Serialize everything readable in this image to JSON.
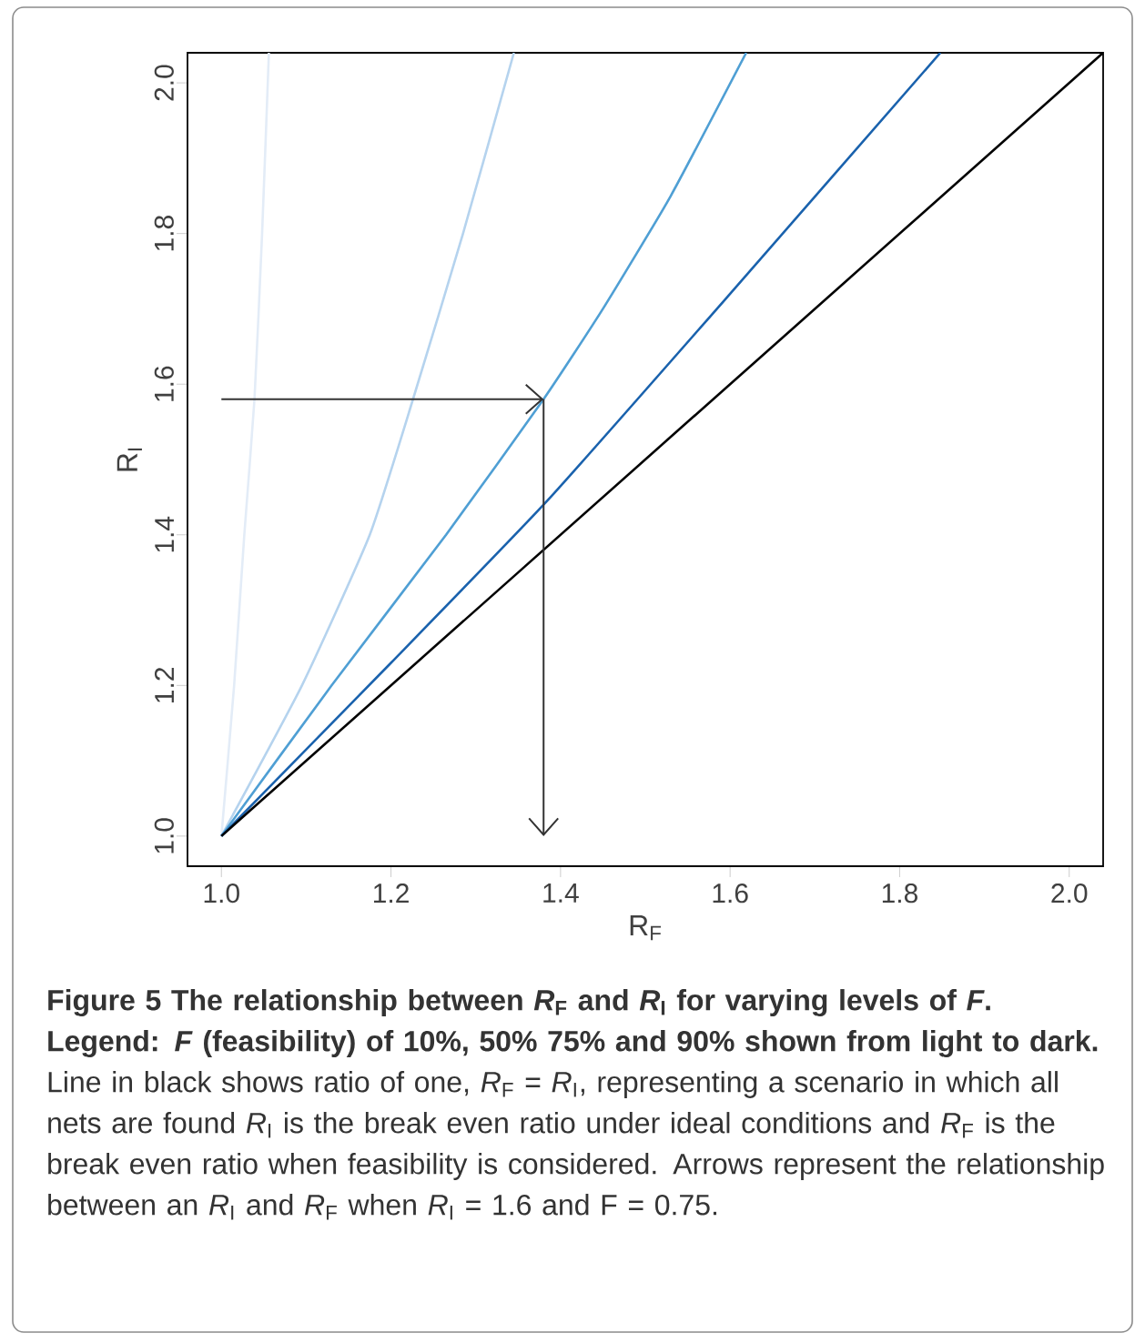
{
  "chart_data": {
    "type": "line",
    "xlabel": "R$_{F}$",
    "ylabel": "R$_{I}$",
    "xlim": [
      0.96,
      2.04
    ],
    "ylim": [
      0.96,
      2.04
    ],
    "xticks": [
      {
        "value": 1,
        "label": "1.0"
      },
      1.2,
      1.4,
      1.6,
      1.8,
      {
        "value": 2,
        "label": "2.0"
      }
    ],
    "yticks": [
      {
        "value": 1,
        "label": "1.0"
      },
      1.2,
      1.4,
      1.6,
      1.8,
      {
        "value": 2,
        "label": "2.0"
      }
    ],
    "grid": false,
    "legend": false,
    "marker": "none",
    "line_style": "solid",
    "series": [
      {
        "color": "#e3ecf7",
        "x": [
          1.0,
          1.015,
          1.027,
          1.039,
          1.048,
          1.056
        ],
        "values": [
          1.0,
          1.2,
          1.4,
          1.58,
          1.8,
          2.04
        ]
      },
      {
        "color": "#b5d3ee",
        "x": [
          1.0,
          1.095,
          1.175,
          1.226,
          1.285,
          1.345
        ],
        "values": [
          1.0,
          1.2,
          1.4,
          1.58,
          1.8,
          2.04
        ]
      },
      {
        "color": "#4f9fd4",
        "x": [
          1.0,
          1.13,
          1.265,
          1.38,
          1.45,
          1.53,
          1.619
        ],
        "values": [
          1.0,
          1.2,
          1.4,
          1.58,
          1.7,
          1.85,
          2.04
        ]
      },
      {
        "color": "#1a62ad",
        "x": [
          1.0,
          1.2,
          1.385,
          1.6,
          1.848
        ],
        "values": [
          1.0,
          1.23,
          1.446,
          1.72,
          2.04
        ]
      },
      {
        "color": "#000000",
        "x": [
          1.0,
          2.04
        ],
        "values": [
          1.0,
          2.04
        ]
      },
      {
        "type": "line",
        "color": "#333333",
        "x": [
          1.0,
          1.38
        ],
        "values": [
          1.58,
          1.58
        ]
      },
      {
        "type": "line",
        "color": "#333333",
        "x": [
          1.38,
          1.38
        ],
        "values": [
          1.58,
          1.0
        ]
      }
    ],
    "annotations": [
      "**Figure 5 The relationship between *R*$_{F}$ and *R*$_{I}$ for varying levels of *F*. Legend: *F* (feasibility) of 10%, 50% 75% and 90% shown from light to dark.** Line in black shows ratio of one, *R*$_{F}$ = *R*$_{I}$, representing a scenario in which all nets are found *R*$_{I}$ is the break even ratio under ideal conditions and *R*$_{F}$ is the break even ratio when feasibility is considered. Arrows represent the relationship between an *R*$_{I}$ and *R*$_{F}$ when *R*$_{I}$ = 1.6 and F = 0.75."
    ]
  }
}
